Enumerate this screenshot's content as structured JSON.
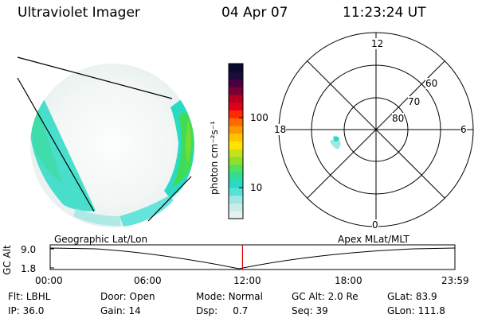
{
  "header": {
    "title": "Ultraviolet Imager",
    "date": "04 Apr 07",
    "time": "11:23:24 UT"
  },
  "colorbar": {
    "unit_label": "photon cm⁻²s⁻¹",
    "tick_labels": [
      "100",
      "10"
    ],
    "colors": [
      "#e6f0ef",
      "#c9ecea",
      "#9fe6e4",
      "#57e2d8",
      "#2cd9c4",
      "#2fdc9a",
      "#4fe25e",
      "#8fe02c",
      "#c7e11e",
      "#ffe400",
      "#ffc400",
      "#ff9800",
      "#ff6a00",
      "#ff2a00",
      "#e0001a",
      "#b30022",
      "#7a0033",
      "#4a0040",
      "#1c0a3a",
      "#0a0a30"
    ]
  },
  "polar": {
    "mlt_labels": {
      "top": "12",
      "left": "18",
      "right": "6",
      "bottom": "0"
    },
    "lat_labels": [
      "60",
      "70",
      "80"
    ]
  },
  "timeline": {
    "ylabel": "GC Alt",
    "y_ticks": [
      "9.0",
      "1.8"
    ],
    "left_label": "Geographic Lat/Lon",
    "right_label": "Apex  MLat/MLT",
    "x_ticks": [
      "00:00",
      "06:00",
      "12:00",
      "18:00",
      "23:59"
    ],
    "current_fraction": 0.4752
  },
  "info": {
    "row1": [
      {
        "key": "Flt: ",
        "value": "LBHL"
      },
      {
        "key": "Door: ",
        "value": "Open"
      },
      {
        "key": "Mode: ",
        "value": "Normal"
      },
      {
        "key": "GC Alt: ",
        "value": "2.0 Re"
      },
      {
        "key": "GLat: ",
        "value": "83.9"
      }
    ],
    "row2": [
      {
        "key": "IP: ",
        "value": "36.0"
      },
      {
        "key": "Gain: ",
        "value": "14"
      },
      {
        "key": "Dsp: ",
        "value": "    0.7"
      },
      {
        "key": "Seq: ",
        "value": "39"
      },
      {
        "key": "GLon: ",
        "value": "111.8"
      }
    ]
  }
}
